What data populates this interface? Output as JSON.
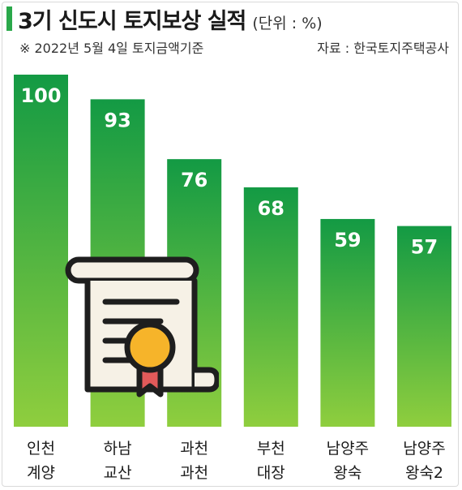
{
  "header": {
    "title": "3기 신도시 토지보상 실적",
    "unit": "(단위 : %)",
    "subtitle": "※ 2022년 5월 4일 토지금액기준",
    "source": "자료 : 한국토지주택공사"
  },
  "chart_data": {
    "type": "bar",
    "categories": [
      [
        "인천",
        "계양"
      ],
      [
        "하남",
        "교산"
      ],
      [
        "과천",
        "과천"
      ],
      [
        "부천",
        "대장"
      ],
      [
        "남양주",
        "왕숙"
      ],
      [
        "남양주",
        "왕숙2"
      ]
    ],
    "values": [
      100,
      93,
      76,
      68,
      59,
      57
    ],
    "ylim": [
      0,
      100
    ],
    "grid": false,
    "legend": "none",
    "data_labels": true
  },
  "colors": {
    "bar_top": "#139a44",
    "bar_bottom": "#8fce3e",
    "accent": "#2aa84a",
    "icon_outline": "#1e1e1e",
    "icon_paper": "#f6f1e6",
    "icon_medal": "#f6b42a",
    "icon_ribbon": "#e15a5a"
  },
  "icons": {
    "overlay": "certificate-icon"
  }
}
